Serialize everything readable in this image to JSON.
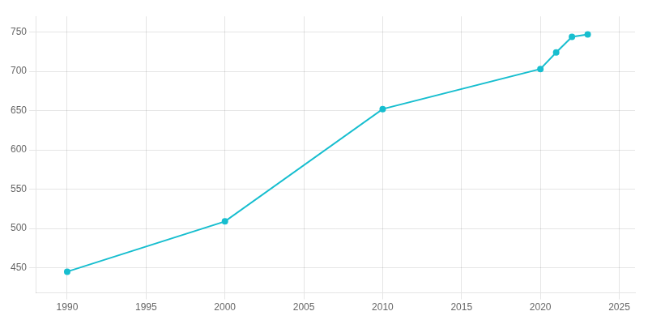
{
  "chart_data": {
    "type": "line",
    "x": [
      1990,
      2000,
      2010,
      2020,
      2021,
      2022,
      2023
    ],
    "values": [
      445,
      509,
      652,
      703,
      724,
      744,
      747
    ],
    "color": "#17becf",
    "marker": "circle",
    "xlim": [
      1988,
      2026
    ],
    "xticks": [
      1990,
      1995,
      2000,
      2005,
      2010,
      2015,
      2020,
      2025
    ],
    "ylim": [
      418,
      770
    ],
    "yticks": [
      450,
      500,
      550,
      600,
      650,
      700,
      750
    ],
    "grid": true
  }
}
